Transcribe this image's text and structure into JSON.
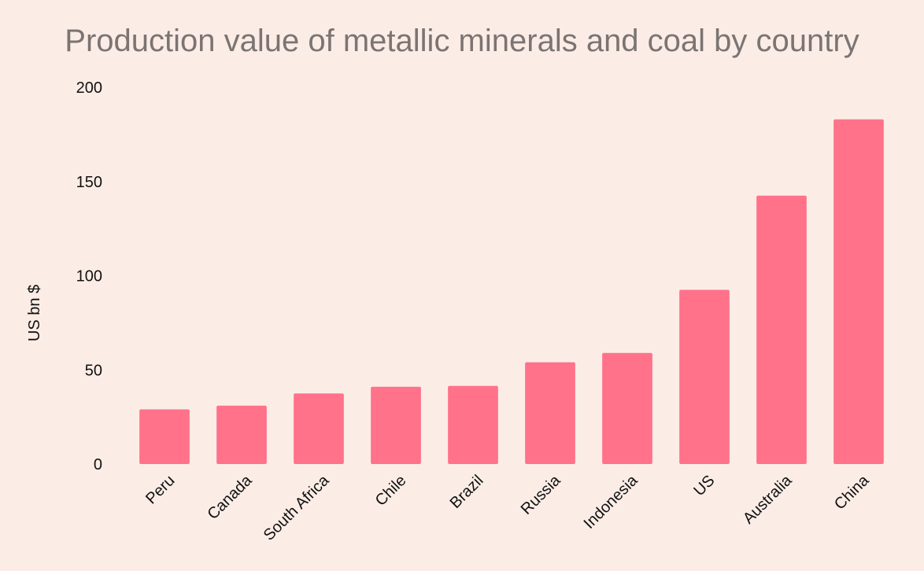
{
  "chart_data": {
    "type": "bar",
    "title": "Production value of metallic minerals and coal by country",
    "xlabel": "",
    "ylabel": "US bn $",
    "categories": [
      "Peru",
      "Canada",
      "South Africa",
      "Chile",
      "Brazil",
      "Russia",
      "Indonesia",
      "US",
      "Australia",
      "China"
    ],
    "values": [
      29,
      31,
      37.5,
      41,
      41.5,
      54,
      59,
      92.5,
      142.5,
      183
    ],
    "ylim": [
      0,
      200
    ],
    "yticks": [
      "0",
      "50",
      "100",
      "150",
      "200"
    ],
    "grid": false,
    "legend": "none",
    "bar_color": "#ff728a",
    "background_color": "#fbede6",
    "title_color": "#7b7472"
  }
}
